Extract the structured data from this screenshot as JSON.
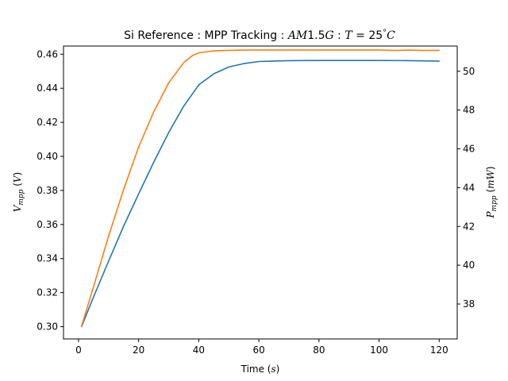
{
  "chart_data": {
    "type": "line",
    "title": {
      "prefix": "Si Reference : MPP Tracking : ",
      "am_var": "AM",
      "am_num": "1.5",
      "am_g": "G",
      "sep": " : ",
      "t_var": "T",
      "eq": " = 25",
      "deg": "°",
      "unit": "C"
    },
    "xlabel": {
      "text": "Time (",
      "var": "s",
      "close": ")"
    },
    "ylabel_left": {
      "var": "V",
      "sub": "mpp",
      "open": " (",
      "unit": "V",
      "close": ")"
    },
    "ylabel_right": {
      "var": "P",
      "sub": "mpp",
      "open": " (",
      "unit": "mW",
      "close": ")"
    },
    "xlim": [
      -5,
      126
    ],
    "ylim_left": [
      0.2928,
      0.4648
    ],
    "ylim_right": [
      36.2,
      51.3
    ],
    "x_ticks": [
      0,
      20,
      40,
      60,
      80,
      100,
      120
    ],
    "y_left_ticks": [
      0.3,
      0.32,
      0.34,
      0.36,
      0.38,
      0.4,
      0.42,
      0.44,
      0.46
    ],
    "y_left_tick_labels": [
      "0.30",
      "0.32",
      "0.34",
      "0.36",
      "0.38",
      "0.40",
      "0.42",
      "0.44",
      "0.46"
    ],
    "y_right_ticks": [
      38,
      40,
      42,
      44,
      46,
      48,
      50
    ],
    "grid": false,
    "legend": "none",
    "series": [
      {
        "axis": "left",
        "color": "#1f77b4",
        "x": [
          1,
          5,
          10,
          15,
          20,
          25,
          30,
          35,
          40,
          45,
          50,
          55,
          60,
          65,
          70,
          80,
          90,
          100,
          110,
          120
        ],
        "y": [
          0.3,
          0.3175,
          0.3385,
          0.359,
          0.378,
          0.3965,
          0.414,
          0.4295,
          0.442,
          0.4485,
          0.4525,
          0.4545,
          0.4557,
          0.456,
          0.4562,
          0.4563,
          0.4563,
          0.4563,
          0.4562,
          0.456
        ]
      },
      {
        "axis": "right",
        "color": "#ff7f0e",
        "x": [
          1,
          5,
          10,
          15,
          20,
          25,
          30,
          35,
          38,
          40,
          45,
          50,
          55,
          60,
          70,
          80,
          90,
          100,
          105,
          110,
          115,
          120
        ],
        "y": [
          36.85,
          38.9,
          41.5,
          43.9,
          46.1,
          47.9,
          49.4,
          50.45,
          50.82,
          50.95,
          51.05,
          51.08,
          51.09,
          51.1,
          51.1,
          51.1,
          51.1,
          51.1,
          51.07,
          51.09,
          51.07,
          51.08
        ]
      }
    ]
  }
}
